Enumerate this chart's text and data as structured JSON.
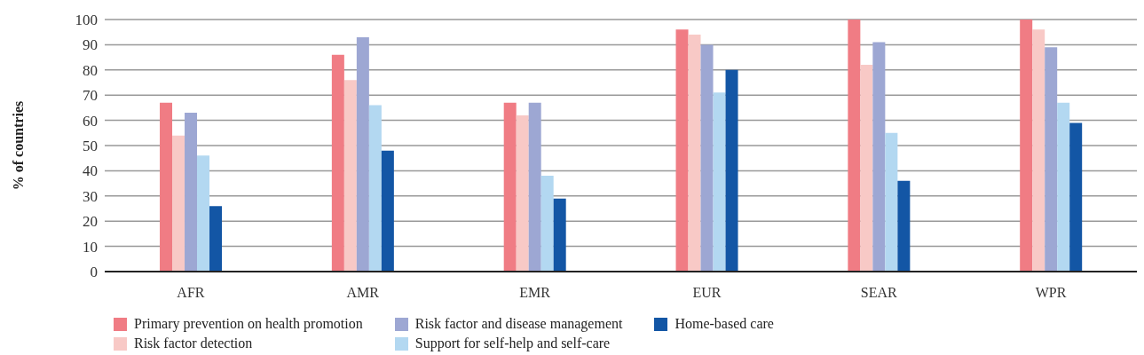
{
  "chart_data": {
    "type": "bar",
    "ylabel": "% of countries",
    "categories": [
      "AFR",
      "AMR",
      "EMR",
      "EUR",
      "SEAR",
      "WPR"
    ],
    "series": [
      {
        "name": "Primary prevention on health promotion",
        "color": "#f07c84",
        "values": [
          67,
          86,
          67,
          96,
          100,
          100
        ]
      },
      {
        "name": "Risk factor detection",
        "color": "#f8c9c6",
        "values": [
          54,
          76,
          62,
          94,
          82,
          96
        ]
      },
      {
        "name": "Risk factor and disease management",
        "color": "#9da7d3",
        "values": [
          63,
          93,
          67,
          90,
          91,
          89
        ]
      },
      {
        "name": "Support for self-help and self-care",
        "color": "#b3d8f1",
        "values": [
          46,
          66,
          38,
          71,
          55,
          67
        ]
      },
      {
        "name": "Home-based care",
        "color": "#1356a5",
        "values": [
          26,
          48,
          29,
          80,
          36,
          59
        ]
      }
    ],
    "ylim": [
      0,
      100
    ],
    "yticks": [
      0,
      10,
      20,
      30,
      40,
      50,
      60,
      70,
      80,
      90,
      100
    ],
    "grid": "y",
    "legend": "bottom"
  }
}
